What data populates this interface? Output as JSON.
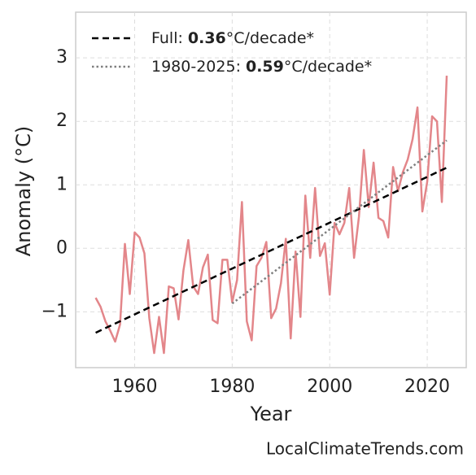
{
  "chart_data": {
    "type": "line",
    "xlabel": "Year",
    "ylabel": "Anomaly (°C)",
    "watermark": "LocalClimateTrends.com",
    "xlim": [
      1947.9,
      2028
    ],
    "ylim": [
      -1.88,
      3.72
    ],
    "xticks": [
      1960,
      1980,
      2000,
      2020
    ],
    "yticks": [
      {
        "value": -1,
        "label": "−1"
      },
      0,
      1,
      2,
      3
    ],
    "grid": true,
    "legend": "upper left",
    "series": [
      {
        "name": null,
        "color": "#e3868a",
        "style": "solid",
        "x": [
          1952,
          1953,
          1954,
          1955,
          1956,
          1957,
          1958,
          1959,
          1960,
          1961,
          1962,
          1963,
          1964,
          1965,
          1966,
          1967,
          1968,
          1969,
          1970,
          1971,
          1972,
          1973,
          1974,
          1975,
          1976,
          1977,
          1978,
          1979,
          1980,
          1981,
          1982,
          1983,
          1984,
          1985,
          1986,
          1987,
          1988,
          1989,
          1990,
          1991,
          1992,
          1993,
          1994,
          1995,
          1996,
          1997,
          1998,
          1999,
          2000,
          2001,
          2002,
          2003,
          2004,
          2005,
          2006,
          2007,
          2008,
          2009,
          2010,
          2011,
          2012,
          2013,
          2014,
          2015,
          2016,
          2017,
          2018,
          2019,
          2020,
          2021,
          2022,
          2023,
          2024
        ],
        "values": [
          -0.78,
          -0.92,
          -1.15,
          -1.3,
          -1.47,
          -1.2,
          0.07,
          -0.72,
          0.25,
          0.17,
          -0.08,
          -1.1,
          -1.65,
          -1.08,
          -1.65,
          -0.6,
          -0.63,
          -1.12,
          -0.35,
          0.13,
          -0.6,
          -0.72,
          -0.3,
          -0.1,
          -1.13,
          -1.18,
          -0.18,
          -0.18,
          -0.85,
          -0.5,
          0.73,
          -1.15,
          -1.45,
          -0.28,
          -0.15,
          0.1,
          -1.1,
          -0.95,
          -0.55,
          0.15,
          -1.42,
          -0.05,
          -1.08,
          0.83,
          -0.15,
          0.95,
          -0.12,
          0.08,
          -0.73,
          0.4,
          0.22,
          0.4,
          0.95,
          -0.15,
          0.5,
          1.55,
          0.65,
          1.35,
          0.48,
          0.43,
          0.17,
          1.28,
          0.9,
          1.2,
          1.4,
          1.72,
          2.22,
          0.58,
          1.05,
          2.08,
          2.0,
          0.73,
          2.72
        ]
      },
      {
        "name": "Full:",
        "slope": 0.36,
        "slope_unit": "°C/decade*",
        "color": "#000000",
        "style": "dashed",
        "x": [
          1952,
          2024
        ],
        "values": [
          -1.33,
          1.27
        ]
      },
      {
        "name": "1980-2025:",
        "slope": 0.59,
        "slope_unit": "°C/decade*",
        "color": "#808080",
        "style": "dotted",
        "x": [
          1980,
          2024
        ],
        "values": [
          -0.87,
          1.7
        ]
      }
    ]
  }
}
